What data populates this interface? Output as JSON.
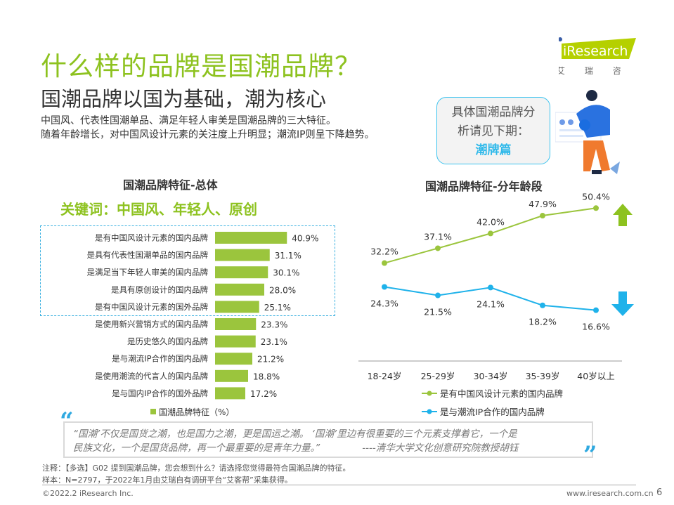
{
  "header": {
    "title": "什么样的品牌是国潮品牌？",
    "subtitle": "国潮品牌以国为基础，潮为核心",
    "desc": [
      "中国风、代表性国潮单品、满足年轻人审美是国潮品牌的三大特征。",
      "随着年龄增长，对中国风设计元素的关注度上升明显；潮流IP则呈下降趋势。"
    ]
  },
  "logo": {
    "brand": "iResearch",
    "cn": "艾 瑞 咨 询",
    "color": "#b5d000"
  },
  "callout": {
    "line1": "具体国潮品牌分",
    "line2": "析请见下期：",
    "highlight": "潮牌篇"
  },
  "keyword": "关键词：中国风、年轻人、原创",
  "chart_data": [
    {
      "type": "bar",
      "orientation": "horizontal",
      "title": "国潮品牌特征-总体",
      "categories": [
        "是有中国风设计元素的国内品牌",
        "是具有代表性国潮单品的国内品牌",
        "是满足当下年轻人审美的国内品牌",
        "是具有原创设计的国内品牌",
        "是有中国风设计元素的国外品牌",
        "是使用新兴营销方式的国内品牌",
        "是历史悠久的国内品牌",
        "是与潮流IP合作的国内品牌",
        "是使用潮流的代言人的国内品牌",
        "是与国内IP合作的国外品牌"
      ],
      "values": [
        40.9,
        31.1,
        30.1,
        28.0,
        25.1,
        23.3,
        23.1,
        21.2,
        18.8,
        17.2
      ],
      "value_labels": [
        "40.9%",
        "31.1%",
        "30.1%",
        "28.0%",
        "25.1%",
        "23.3%",
        "23.1%",
        "21.2%",
        "18.8%",
        "17.2%"
      ],
      "series_name": "国潮品牌特征（%）",
      "color": "#9bc53d",
      "legend": "bottom",
      "highlighted_top": 5
    },
    {
      "type": "line",
      "title": "国潮品牌特征-分年龄段",
      "categories": [
        "18-24岁",
        "25-29岁",
        "30-34岁",
        "35-39岁",
        "40岁以上"
      ],
      "series": [
        {
          "name": "是有中国风设计元素的国内品牌",
          "values": [
            32.2,
            37.1,
            42.0,
            47.9,
            50.4
          ],
          "labels": [
            "32.2%",
            "37.1%",
            "42.0%",
            "47.9%",
            "50.4%"
          ],
          "color": "#9bc53d",
          "trend": "up"
        },
        {
          "name": "是与潮流IP合作的国内品牌",
          "values": [
            24.3,
            21.5,
            24.1,
            18.2,
            16.6
          ],
          "labels": [
            "24.3%",
            "21.5%",
            "24.1%",
            "18.2%",
            "16.6%"
          ],
          "color": "#1fb2ea",
          "trend": "down"
        }
      ],
      "legend": "bottom"
    }
  ],
  "quote": {
    "line1": "“国潮’不仅是国货之潮，也是国力之潮，更是国运之潮。 ‘国潮’里边有很重要的三个元素支撑着它，一个是",
    "line2": "民族文化，一个是国货品牌，再一个最重要的是青年力量。”",
    "attribution": "----清华大学文化创意研究院教授胡钰"
  },
  "notes": [
    "注释：【多选】G02 提到国潮品牌，您会想到什么？请选择您觉得最符合国潮品牌的特征。",
    "样本：N=2797，于2022年1月由艾瑞自有调研平台“艾客帮”采集获得。"
  ],
  "footer": {
    "copyright": "©2022.2 iResearch Inc.",
    "url": "www.iresearch.com.cn",
    "page": "6"
  }
}
